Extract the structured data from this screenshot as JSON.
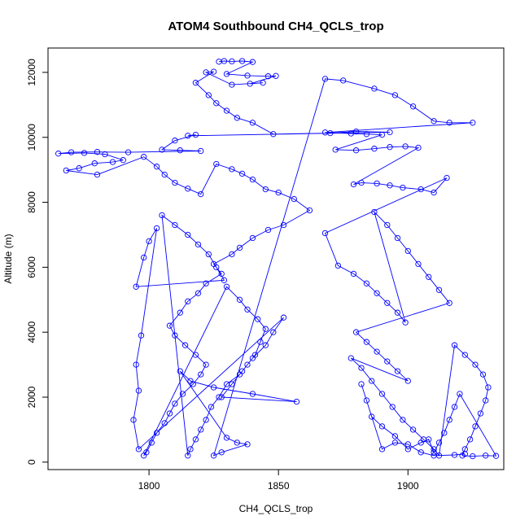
{
  "chart_data": {
    "type": "scatter",
    "title": "ATOM4 Southbound CH4_QCLS_trop",
    "xlabel": "CH4_QCLS_trop",
    "ylabel": "Altitude (m)",
    "xlim": [
      1761,
      1937
    ],
    "ylim": [
      -230,
      12750
    ],
    "xticks": [
      1800,
      1850,
      1900
    ],
    "yticks": [
      0,
      2000,
      4000,
      6000,
      8000,
      10000,
      12000
    ],
    "grid": false,
    "legend": "none",
    "color": "#0000ff",
    "series": [
      {
        "points": [
          [
            1827,
            12330
          ],
          [
            1829,
            12350
          ],
          [
            1832,
            12340
          ],
          [
            1836,
            12350
          ],
          [
            1840,
            12320
          ],
          [
            1830,
            11950
          ],
          [
            1838,
            11900
          ],
          [
            1846,
            11880
          ],
          [
            1849,
            11890
          ],
          [
            1839,
            11650
          ],
          [
            1844,
            11680
          ],
          [
            1832,
            11620
          ],
          [
            1822,
            12000
          ],
          [
            1825,
            12020
          ],
          [
            1818,
            11680
          ],
          [
            1823,
            11300
          ],
          [
            1826,
            11050
          ],
          [
            1830,
            10820
          ],
          [
            1834,
            10600
          ],
          [
            1840,
            10450
          ],
          [
            1848,
            10100
          ],
          [
            1870,
            10130
          ],
          [
            1880,
            10180
          ],
          [
            1893,
            10160
          ],
          [
            1815,
            10050
          ],
          [
            1818,
            10080
          ],
          [
            1810,
            9900
          ],
          [
            1805,
            9620
          ],
          [
            1812,
            9600
          ],
          [
            1820,
            9580
          ],
          [
            1792,
            9540
          ],
          [
            1780,
            9550
          ],
          [
            1770,
            9540
          ],
          [
            1765,
            9500
          ],
          [
            1775,
            9520
          ],
          [
            1783,
            9480
          ],
          [
            1790,
            9300
          ],
          [
            1786,
            9240
          ],
          [
            1779,
            9200
          ],
          [
            1773,
            9050
          ],
          [
            1768,
            8980
          ],
          [
            1780,
            8850
          ],
          [
            1798,
            9400
          ],
          [
            1803,
            9100
          ],
          [
            1806,
            8850
          ],
          [
            1810,
            8600
          ],
          [
            1815,
            8420
          ],
          [
            1820,
            8250
          ],
          [
            1826,
            9180
          ],
          [
            1832,
            9020
          ],
          [
            1836,
            8880
          ],
          [
            1840,
            8700
          ],
          [
            1845,
            8400
          ],
          [
            1850,
            8300
          ],
          [
            1856,
            8100
          ],
          [
            1862,
            7750
          ],
          [
            1852,
            7300
          ],
          [
            1846,
            7150
          ],
          [
            1840,
            6900
          ],
          [
            1835,
            6600
          ],
          [
            1832,
            6400
          ],
          [
            1825,
            6100
          ],
          [
            1828,
            5800
          ],
          [
            1822,
            5500
          ],
          [
            1819,
            5200
          ],
          [
            1815,
            4950
          ],
          [
            1812,
            4600
          ],
          [
            1808,
            4200
          ],
          [
            1810,
            3900
          ],
          [
            1814,
            3600
          ],
          [
            1818,
            3300
          ],
          [
            1822,
            3000
          ],
          [
            1820,
            2700
          ],
          [
            1817,
            2400
          ],
          [
            1813,
            2100
          ],
          [
            1810,
            1800
          ],
          [
            1808,
            1500
          ],
          [
            1806,
            1200
          ],
          [
            1803,
            900
          ],
          [
            1801,
            600
          ],
          [
            1799,
            300
          ],
          [
            1798,
            200
          ],
          [
            1830,
            5400
          ],
          [
            1835,
            5000
          ],
          [
            1838,
            4700
          ],
          [
            1842,
            4400
          ],
          [
            1845,
            4100
          ],
          [
            1843,
            3700
          ],
          [
            1841,
            3300
          ],
          [
            1838,
            3000
          ],
          [
            1835,
            2700
          ],
          [
            1830,
            2400
          ],
          [
            1827,
            2000
          ],
          [
            1824,
            1700
          ],
          [
            1822,
            1300
          ],
          [
            1820,
            1000
          ],
          [
            1818,
            700
          ],
          [
            1816,
            400
          ],
          [
            1815,
            200
          ],
          [
            1805,
            7600
          ],
          [
            1810,
            7300
          ],
          [
            1815,
            7000
          ],
          [
            1819,
            6700
          ],
          [
            1823,
            6400
          ],
          [
            1826,
            6000
          ],
          [
            1829,
            5600
          ],
          [
            1795,
            5400
          ],
          [
            1798,
            6300
          ],
          [
            1800,
            6800
          ],
          [
            1803,
            7200
          ],
          [
            1797,
            3900
          ],
          [
            1795,
            3000
          ],
          [
            1796,
            2200
          ],
          [
            1794,
            1300
          ],
          [
            1796,
            400
          ],
          [
            1852,
            4450
          ],
          [
            1848,
            4000
          ],
          [
            1845,
            3600
          ],
          [
            1840,
            3200
          ],
          [
            1836,
            2800
          ],
          [
            1832,
            2400
          ],
          [
            1828,
            2000
          ],
          [
            1857,
            1860
          ],
          [
            1840,
            2100
          ],
          [
            1825,
            2300
          ],
          [
            1816,
            2500
          ],
          [
            1812,
            2800
          ],
          [
            1830,
            750
          ],
          [
            1834,
            600
          ],
          [
            1838,
            550
          ],
          [
            1828,
            300
          ],
          [
            1825,
            200
          ],
          [
            1868,
            11800
          ],
          [
            1875,
            11750
          ],
          [
            1887,
            11500
          ],
          [
            1895,
            11300
          ],
          [
            1902,
            10950
          ],
          [
            1910,
            10500
          ],
          [
            1916,
            10450
          ],
          [
            1925,
            10450
          ],
          [
            1868,
            10150
          ],
          [
            1878,
            10120
          ],
          [
            1884,
            10100
          ],
          [
            1890,
            10080
          ],
          [
            1872,
            9620
          ],
          [
            1880,
            9600
          ],
          [
            1887,
            9650
          ],
          [
            1893,
            9700
          ],
          [
            1899,
            9720
          ],
          [
            1904,
            9680
          ],
          [
            1879,
            8550
          ],
          [
            1882,
            8600
          ],
          [
            1888,
            8580
          ],
          [
            1893,
            8520
          ],
          [
            1898,
            8450
          ],
          [
            1905,
            8400
          ],
          [
            1910,
            8300
          ],
          [
            1915,
            8750
          ],
          [
            1868,
            7050
          ],
          [
            1873,
            6050
          ],
          [
            1879,
            5800
          ],
          [
            1884,
            5500
          ],
          [
            1888,
            5200
          ],
          [
            1892,
            4900
          ],
          [
            1896,
            4600
          ],
          [
            1899,
            4300
          ],
          [
            1887,
            7700
          ],
          [
            1892,
            7300
          ],
          [
            1896,
            6900
          ],
          [
            1900,
            6500
          ],
          [
            1904,
            6100
          ],
          [
            1908,
            5700
          ],
          [
            1912,
            5300
          ],
          [
            1916,
            4900
          ],
          [
            1880,
            4000
          ],
          [
            1884,
            3700
          ],
          [
            1888,
            3400
          ],
          [
            1892,
            3100
          ],
          [
            1896,
            2800
          ],
          [
            1900,
            2500
          ],
          [
            1878,
            3200
          ],
          [
            1882,
            2900
          ],
          [
            1886,
            2500
          ],
          [
            1890,
            2100
          ],
          [
            1894,
            1700
          ],
          [
            1898,
            1300
          ],
          [
            1902,
            1000
          ],
          [
            1906,
            700
          ],
          [
            1910,
            400
          ],
          [
            1912,
            200
          ],
          [
            1918,
            3600
          ],
          [
            1922,
            3300
          ],
          [
            1926,
            3000
          ],
          [
            1929,
            2700
          ],
          [
            1931,
            2300
          ],
          [
            1930,
            1900
          ],
          [
            1928,
            1500
          ],
          [
            1926,
            1100
          ],
          [
            1924,
            700
          ],
          [
            1922,
            400
          ],
          [
            1921,
            200
          ],
          [
            1925,
            180
          ],
          [
            1930,
            200
          ],
          [
            1934,
            190
          ],
          [
            1920,
            2100
          ],
          [
            1918,
            1700
          ],
          [
            1916,
            1300
          ],
          [
            1914,
            900
          ],
          [
            1912,
            600
          ],
          [
            1910,
            300
          ],
          [
            1908,
            700
          ],
          [
            1905,
            600
          ],
          [
            1900,
            400
          ],
          [
            1895,
            800
          ],
          [
            1890,
            1100
          ],
          [
            1886,
            1400
          ],
          [
            1884,
            1900
          ],
          [
            1882,
            2400
          ],
          [
            1890,
            400
          ],
          [
            1895,
            600
          ],
          [
            1900,
            550
          ],
          [
            1905,
            300
          ],
          [
            1910,
            200
          ],
          [
            1918,
            220
          ],
          [
            1922,
            250
          ]
        ]
      }
    ]
  }
}
